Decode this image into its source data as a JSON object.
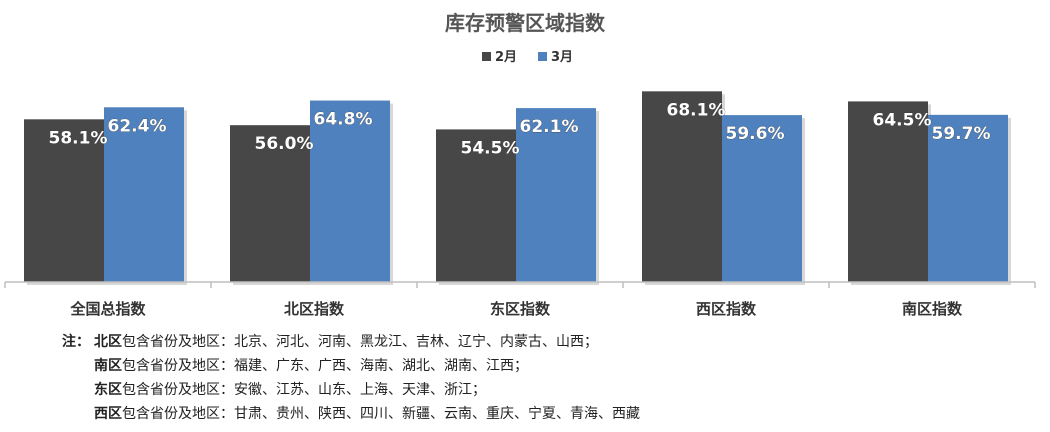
{
  "chart_data": {
    "type": "bar",
    "title": "库存预警区域指数",
    "categories": [
      "全国总指数",
      "北区指数",
      "东区指数",
      "西区指数",
      "南区指数"
    ],
    "series": [
      {
        "name": "2月",
        "values": [
          58.1,
          56.0,
          54.5,
          68.1,
          64.5
        ],
        "labels": [
          "58.1%",
          "56.0%",
          "54.5%",
          "68.1%",
          "64.5%"
        ],
        "color": "#474747"
      },
      {
        "name": "3月",
        "values": [
          62.4,
          64.8,
          62.1,
          59.6,
          59.7
        ],
        "labels": [
          "62.4%",
          "64.8%",
          "62.1%",
          "59.6%",
          "59.7%"
        ],
        "color": "#4e81bd"
      }
    ],
    "ylim": [
      0,
      70
    ],
    "grid": false,
    "legend": "top-center"
  },
  "notes": {
    "lead": "注：",
    "rows": [
      {
        "region": "北区",
        "text": "包含省份及地区：北京、河北、河南、黑龙江、吉林、辽宁、内蒙古、山西；"
      },
      {
        "region": "南区",
        "text": "包含省份及地区：福建、广东、广西、海南、湖北、湖南、江西；"
      },
      {
        "region": "东区",
        "text": "包含省份及地区：安徽、江苏、山东、上海、天津、浙江；"
      },
      {
        "region": "西区",
        "text": "包含省份及地区：甘肃、贵州、陕西、四川、新疆、云南、重庆、宁夏、青海、西藏"
      }
    ]
  }
}
